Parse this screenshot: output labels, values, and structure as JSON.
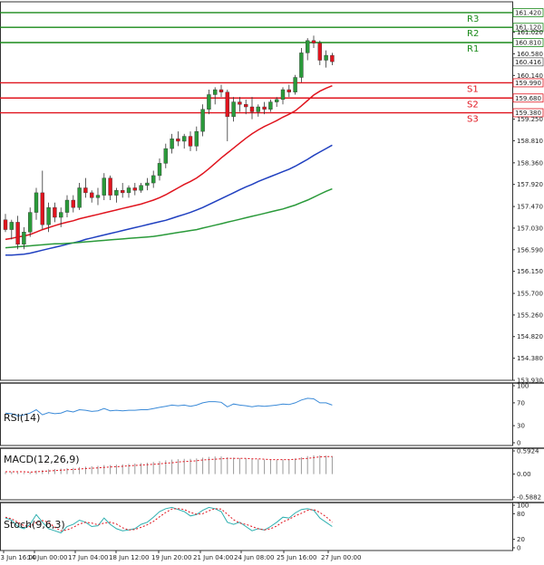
{
  "chart_data": {
    "type": "candlestick",
    "price_axis": {
      "min": 153.93,
      "max": 161.64,
      "tick_labels": [
        "161.020",
        "160.580",
        "160.140",
        "159.250",
        "158.810",
        "158.360",
        "157.920",
        "157.470",
        "157.030",
        "156.590",
        "156.150",
        "155.700",
        "155.260",
        "154.820",
        "154.380",
        "153.930"
      ]
    },
    "time_axis": {
      "tick_labels": [
        "13 Jun 16:00",
        "14 Jun 00:00",
        "17 Jun 04:00",
        "18 Jun 12:00",
        "19 Jun 20:00",
        "21 Jun 04:00",
        "24 Jun 08:00",
        "25 Jun 16:00",
        "27 Jun 00:00"
      ]
    },
    "levels": [
      {
        "name": "R3",
        "value": 161.42,
        "label": "161.420",
        "color": "#1a8a1a"
      },
      {
        "name": "R2",
        "value": 161.12,
        "label": "161.120",
        "color": "#1a8a1a"
      },
      {
        "name": "R1",
        "value": 160.81,
        "label": "160.810",
        "color": "#1a8a1a"
      },
      {
        "name": "S1",
        "value": 159.99,
        "label": "159.990",
        "color": "#e0141e"
      },
      {
        "name": "S2",
        "value": 159.68,
        "label": "159.680",
        "color": "#e0141e"
      },
      {
        "name": "S3",
        "value": 159.38,
        "label": "159.380",
        "color": "#e0141e"
      }
    ],
    "current_price": {
      "value": 160.416,
      "label": "160.416"
    },
    "candles": [
      [
        157.2,
        157.32,
        156.95,
        157.0
      ],
      [
        157.0,
        157.2,
        156.8,
        157.15
      ],
      [
        157.15,
        157.28,
        156.6,
        156.7
      ],
      [
        156.7,
        157.05,
        156.6,
        156.95
      ],
      [
        156.95,
        157.45,
        156.85,
        157.35
      ],
      [
        157.35,
        157.85,
        157.2,
        157.75
      ],
      [
        157.75,
        158.2,
        157.0,
        157.1
      ],
      [
        157.1,
        157.55,
        156.95,
        157.45
      ],
      [
        157.45,
        157.55,
        157.15,
        157.25
      ],
      [
        157.25,
        157.45,
        157.05,
        157.35
      ],
      [
        157.35,
        157.7,
        157.25,
        157.6
      ],
      [
        157.6,
        157.7,
        157.35,
        157.45
      ],
      [
        157.45,
        157.95,
        157.4,
        157.85
      ],
      [
        157.85,
        158.05,
        157.65,
        157.75
      ],
      [
        157.75,
        157.8,
        157.55,
        157.65
      ],
      [
        157.65,
        157.85,
        157.5,
        157.7
      ],
      [
        157.7,
        158.15,
        157.6,
        158.05
      ],
      [
        158.05,
        158.1,
        157.6,
        157.7
      ],
      [
        157.7,
        157.85,
        157.55,
        157.8
      ],
      [
        157.8,
        157.95,
        157.65,
        157.75
      ],
      [
        157.75,
        157.9,
        157.65,
        157.85
      ],
      [
        157.85,
        157.95,
        157.7,
        157.8
      ],
      [
        157.8,
        157.95,
        157.75,
        157.9
      ],
      [
        157.9,
        158.05,
        157.8,
        157.95
      ],
      [
        157.95,
        158.2,
        157.85,
        158.1
      ],
      [
        158.1,
        158.45,
        158.0,
        158.35
      ],
      [
        158.35,
        158.75,
        158.25,
        158.65
      ],
      [
        158.65,
        158.95,
        158.55,
        158.85
      ],
      [
        158.85,
        159.0,
        158.7,
        158.8
      ],
      [
        158.8,
        158.95,
        158.65,
        158.9
      ],
      [
        158.9,
        159.0,
        158.6,
        158.7
      ],
      [
        158.7,
        159.1,
        158.6,
        159.0
      ],
      [
        159.0,
        159.55,
        158.9,
        159.45
      ],
      [
        159.45,
        159.85,
        159.35,
        159.75
      ],
      [
        159.75,
        159.9,
        159.55,
        159.85
      ],
      [
        159.85,
        159.95,
        159.7,
        159.8
      ],
      [
        159.8,
        159.85,
        158.8,
        159.3
      ],
      [
        159.3,
        159.7,
        159.2,
        159.6
      ],
      [
        159.6,
        159.7,
        159.4,
        159.55
      ],
      [
        159.55,
        159.65,
        159.35,
        159.5
      ],
      [
        159.5,
        159.7,
        159.25,
        159.4
      ],
      [
        159.4,
        159.55,
        159.3,
        159.5
      ],
      [
        159.5,
        159.6,
        159.35,
        159.45
      ],
      [
        159.45,
        159.65,
        159.4,
        159.6
      ],
      [
        159.6,
        159.7,
        159.5,
        159.65
      ],
      [
        159.65,
        159.9,
        159.55,
        159.85
      ],
      [
        159.85,
        159.95,
        159.7,
        159.8
      ],
      [
        159.8,
        160.15,
        159.75,
        160.1
      ],
      [
        160.1,
        160.7,
        160.0,
        160.6
      ],
      [
        160.6,
        160.9,
        160.45,
        160.85
      ],
      [
        160.85,
        160.95,
        160.7,
        160.8
      ],
      [
        160.8,
        160.85,
        160.35,
        160.45
      ],
      [
        160.45,
        160.65,
        160.3,
        160.55
      ],
      [
        160.55,
        160.6,
        160.35,
        160.42
      ]
    ],
    "moving_averages": [
      {
        "color": "#e0141e",
        "values": [
          156.8,
          156.82,
          156.85,
          156.87,
          156.9,
          156.95,
          157.0,
          157.04,
          157.08,
          157.12,
          157.15,
          157.18,
          157.22,
          157.25,
          157.28,
          157.31,
          157.34,
          157.37,
          157.4,
          157.43,
          157.46,
          157.49,
          157.52,
          157.56,
          157.6,
          157.65,
          157.71,
          157.78,
          157.85,
          157.92,
          157.98,
          158.05,
          158.14,
          158.24,
          158.35,
          158.46,
          158.56,
          158.66,
          158.76,
          158.86,
          158.95,
          159.03,
          159.1,
          159.16,
          159.22,
          159.29,
          159.35,
          159.42,
          159.52,
          159.63,
          159.74,
          159.82,
          159.88,
          159.93
        ]
      },
      {
        "color": "#2040c0",
        "values": [
          156.48,
          156.48,
          156.49,
          156.5,
          156.52,
          156.55,
          156.58,
          156.61,
          156.64,
          156.67,
          156.7,
          156.73,
          156.76,
          156.8,
          156.83,
          156.86,
          156.89,
          156.92,
          156.95,
          156.98,
          157.01,
          157.04,
          157.07,
          157.1,
          157.13,
          157.16,
          157.19,
          157.23,
          157.27,
          157.31,
          157.35,
          157.4,
          157.45,
          157.51,
          157.57,
          157.63,
          157.69,
          157.75,
          157.81,
          157.87,
          157.92,
          157.98,
          158.03,
          158.08,
          158.13,
          158.18,
          158.23,
          158.29,
          158.36,
          158.43,
          158.51,
          158.58,
          158.65,
          158.72
        ]
      },
      {
        "color": "#2a9a3a",
        "values": [
          156.63,
          156.64,
          156.65,
          156.66,
          156.67,
          156.68,
          156.69,
          156.7,
          156.71,
          156.71,
          156.72,
          156.73,
          156.74,
          156.75,
          156.76,
          156.77,
          156.78,
          156.79,
          156.8,
          156.81,
          156.82,
          156.83,
          156.84,
          156.85,
          156.86,
          156.88,
          156.9,
          156.92,
          156.94,
          156.96,
          156.98,
          157.0,
          157.03,
          157.06,
          157.09,
          157.12,
          157.15,
          157.18,
          157.21,
          157.24,
          157.27,
          157.3,
          157.33,
          157.36,
          157.39,
          157.42,
          157.46,
          157.5,
          157.55,
          157.6,
          157.66,
          157.72,
          157.78,
          157.83
        ]
      }
    ],
    "indicators": [
      {
        "name": "RSI(14)",
        "ticks": [
          "100",
          "70",
          "30",
          "0"
        ],
        "min": 0,
        "max": 100,
        "values": [
          52,
          51,
          47,
          49,
          52,
          58,
          49,
          53,
          51,
          52,
          56,
          54,
          58,
          57,
          55,
          56,
          60,
          56,
          57,
          56,
          57,
          57,
          58,
          58,
          60,
          62,
          64,
          66,
          65,
          66,
          64,
          66,
          70,
          72,
          72,
          71,
          63,
          68,
          66,
          65,
          63,
          65,
          64,
          65,
          66,
          68,
          67,
          70,
          75,
          78,
          77,
          70,
          70,
          66
        ]
      },
      {
        "name": "MACD(12,26,9)",
        "ticks": [
          "0.5924",
          "0.00",
          "-0.5882"
        ],
        "min": -0.5882,
        "max": 0.5924,
        "values": [
          0.05,
          0.06,
          0.04,
          0.03,
          0.05,
          0.09,
          0.1,
          0.12,
          0.13,
          0.14,
          0.15,
          0.16,
          0.18,
          0.19,
          0.2,
          0.21,
          0.23,
          0.23,
          0.24,
          0.25,
          0.26,
          0.27,
          0.28,
          0.29,
          0.31,
          0.33,
          0.35,
          0.37,
          0.38,
          0.39,
          0.39,
          0.4,
          0.42,
          0.44,
          0.45,
          0.45,
          0.43,
          0.42,
          0.41,
          0.4,
          0.39,
          0.38,
          0.37,
          0.36,
          0.36,
          0.37,
          0.38,
          0.4,
          0.43,
          0.46,
          0.48,
          0.48,
          0.47,
          0.46
        ],
        "signal": [
          0.06,
          0.06,
          0.06,
          0.06,
          0.05,
          0.06,
          0.07,
          0.08,
          0.09,
          0.1,
          0.11,
          0.12,
          0.13,
          0.14,
          0.15,
          0.16,
          0.17,
          0.18,
          0.19,
          0.2,
          0.21,
          0.22,
          0.23,
          0.24,
          0.25,
          0.26,
          0.28,
          0.29,
          0.31,
          0.32,
          0.33,
          0.34,
          0.36,
          0.37,
          0.38,
          0.39,
          0.4,
          0.4,
          0.4,
          0.4,
          0.39,
          0.39,
          0.38,
          0.37,
          0.37,
          0.37,
          0.37,
          0.38,
          0.39,
          0.4,
          0.42,
          0.44,
          0.45,
          0.45
        ]
      },
      {
        "name": "Stoch(9,6,3)",
        "ticks": [
          "100",
          "80",
          "20",
          "0"
        ],
        "min": 0,
        "max": 100,
        "values": [
          70,
          65,
          50,
          45,
          55,
          78,
          60,
          45,
          40,
          35,
          50,
          55,
          65,
          60,
          50,
          52,
          70,
          55,
          45,
          40,
          42,
          45,
          55,
          60,
          72,
          85,
          92,
          95,
          90,
          85,
          75,
          78,
          88,
          95,
          92,
          85,
          60,
          55,
          60,
          50,
          40,
          45,
          42,
          50,
          60,
          72,
          70,
          82,
          90,
          92,
          88,
          70,
          60,
          50
        ],
        "signal": [
          72,
          68,
          60,
          52,
          50,
          60,
          64,
          60,
          48,
          40,
          42,
          48,
          56,
          60,
          58,
          54,
          58,
          60,
          56,
          47,
          42,
          43,
          48,
          54,
          62,
          73,
          83,
          91,
          92,
          90,
          83,
          79,
          80,
          87,
          92,
          91,
          79,
          66,
          58,
          55,
          50,
          45,
          42,
          45,
          51,
          61,
          67,
          75,
          81,
          88,
          90,
          83,
          73,
          60
        ]
      }
    ]
  }
}
